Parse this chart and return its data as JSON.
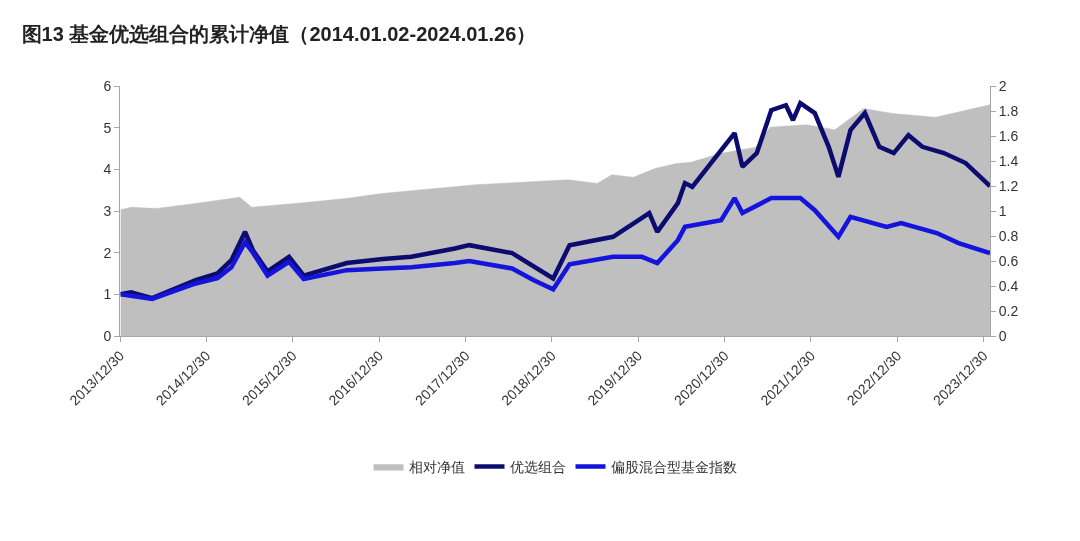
{
  "chart_data": {
    "type": "line",
    "title": "图13 基金优选组合的累计净值（2014.01.02-2024.01.26）",
    "xlim": [
      "2013-12-30",
      "2024-01-26"
    ],
    "xticks": [
      {
        "value": "2013-12-30",
        "label": "2013/12/30"
      },
      {
        "value": "2014-12-30",
        "label": "2014/12/30"
      },
      {
        "value": "2015-12-30",
        "label": "2015/12/30"
      },
      {
        "value": "2016-12-30",
        "label": "2016/12/30"
      },
      {
        "value": "2017-12-30",
        "label": "2017/12/30"
      },
      {
        "value": "2018-12-30",
        "label": "2018/12/30"
      },
      {
        "value": "2019-12-30",
        "label": "2019/12/30"
      },
      {
        "value": "2020-12-30",
        "label": "2020/12/30"
      },
      {
        "value": "2021-12-30",
        "label": "2021/12/30"
      },
      {
        "value": "2022-12-30",
        "label": "2022/12/30"
      },
      {
        "value": "2023-12-30",
        "label": "2023/12/30"
      }
    ],
    "ylim": [
      0,
      6
    ],
    "yticks": [
      0,
      1,
      2,
      3,
      4,
      5,
      6
    ],
    "y2lim": [
      0,
      2
    ],
    "y2ticks": [
      0,
      0.2,
      0.4,
      0.6,
      0.8,
      1,
      1.2,
      1.4,
      1.6,
      1.8,
      2
    ],
    "grid": false,
    "legend": "bottom",
    "marker": "none",
    "line_style": "solid",
    "series": [
      {
        "name": "相对净值",
        "type": "area",
        "axis": "y2",
        "color": "#bfbfbf",
        "x": [
          "2014-01-02",
          "2014-02-15",
          "2014-06-01",
          "2014-11-15",
          "2015-05-20",
          "2015-07-10",
          "2016-01-10",
          "2016-08-10",
          "2017-01-10",
          "2018-02-10",
          "2019-03-10",
          "2019-07-10",
          "2019-09-10",
          "2019-12-10",
          "2020-03-10",
          "2020-06-10",
          "2020-08-10",
          "2020-12-10",
          "2021-05-10",
          "2021-07-10",
          "2021-12-10",
          "2022-04-10",
          "2022-08-10",
          "2022-12-10",
          "2023-06-10",
          "2024-01-26"
        ],
        "values": [
          1.01,
          1.03,
          1.02,
          1.06,
          1.11,
          1.03,
          1.06,
          1.1,
          1.14,
          1.21,
          1.25,
          1.22,
          1.29,
          1.27,
          1.34,
          1.38,
          1.39,
          1.46,
          1.51,
          1.67,
          1.69,
          1.65,
          1.82,
          1.78,
          1.75,
          1.85
        ]
      },
      {
        "name": "优选组合",
        "color": "#0c0c70",
        "x": [
          "2014-01-02",
          "2014-02-15",
          "2014-05-15",
          "2014-11-15",
          "2015-02-15",
          "2015-04-15",
          "2015-06-12",
          "2015-07-15",
          "2015-09-15",
          "2015-12-15",
          "2016-02-15",
          "2016-08-15",
          "2017-01-15",
          "2017-05-15",
          "2017-11-15",
          "2018-01-15",
          "2018-07-15",
          "2019-01-05",
          "2019-03-15",
          "2019-09-15",
          "2020-02-15",
          "2020-03-20",
          "2020-06-15",
          "2020-07-15",
          "2020-08-15",
          "2021-02-10",
          "2021-03-15",
          "2021-05-15",
          "2021-07-15",
          "2021-09-15",
          "2021-10-15",
          "2021-11-15",
          "2022-01-15",
          "2022-03-15",
          "2022-04-25",
          "2022-06-15",
          "2022-08-15",
          "2022-10-15",
          "2022-12-15",
          "2023-02-15",
          "2023-04-15",
          "2023-07-15",
          "2023-10-15",
          "2024-01-26"
        ],
        "values": [
          1.0,
          1.05,
          0.91,
          1.34,
          1.5,
          1.82,
          2.5,
          2.06,
          1.55,
          1.9,
          1.45,
          1.75,
          1.85,
          1.9,
          2.1,
          2.18,
          1.99,
          1.38,
          2.18,
          2.38,
          2.95,
          2.5,
          3.19,
          3.67,
          3.58,
          4.87,
          4.06,
          4.39,
          5.42,
          5.54,
          5.18,
          5.59,
          5.35,
          4.54,
          3.82,
          4.94,
          5.35,
          4.54,
          4.39,
          4.82,
          4.54,
          4.39,
          4.15,
          3.6
        ]
      },
      {
        "name": "偏股混合型基金指数",
        "color": "#1414dc",
        "x": [
          "2014-01-02",
          "2014-05-15",
          "2014-11-15",
          "2015-02-15",
          "2015-04-15",
          "2015-06-12",
          "2015-07-15",
          "2015-09-15",
          "2015-12-15",
          "2016-02-15",
          "2016-08-15",
          "2017-01-15",
          "2017-05-15",
          "2017-11-15",
          "2018-01-15",
          "2018-07-15",
          "2018-10-15",
          "2019-01-05",
          "2019-03-15",
          "2019-09-15",
          "2020-01-15",
          "2020-03-20",
          "2020-06-15",
          "2020-07-15",
          "2020-12-15",
          "2021-02-10",
          "2021-03-15",
          "2021-07-15",
          "2021-11-15",
          "2022-01-15",
          "2022-04-25",
          "2022-06-15",
          "2022-11-15",
          "2023-01-15",
          "2023-06-15",
          "2023-09-15",
          "2024-01-26"
        ],
        "values": [
          1.0,
          0.89,
          1.26,
          1.39,
          1.65,
          2.25,
          2.0,
          1.45,
          1.78,
          1.37,
          1.58,
          1.62,
          1.65,
          1.75,
          1.8,
          1.62,
          1.34,
          1.12,
          1.72,
          1.9,
          1.9,
          1.75,
          2.3,
          2.62,
          2.78,
          3.31,
          2.95,
          3.31,
          3.31,
          3.02,
          2.38,
          2.86,
          2.62,
          2.71,
          2.47,
          2.23,
          1.99
        ]
      }
    ]
  }
}
